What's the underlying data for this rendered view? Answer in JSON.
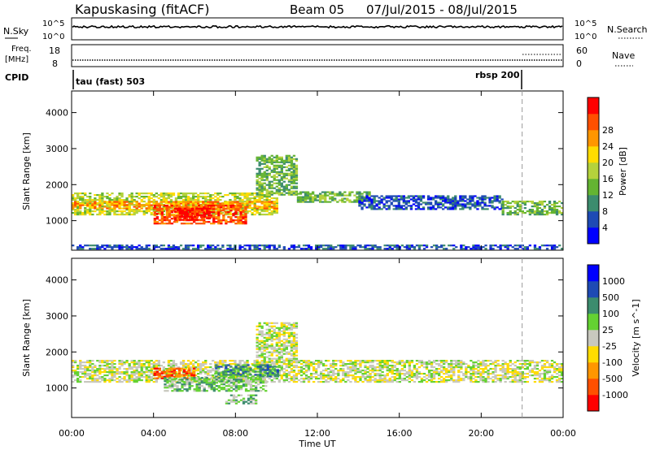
{
  "header": {
    "station": "Kapuskasing (fitACF)",
    "beam": "Beam 05",
    "dates": "07/Jul/2015 - 08/Jul/2015"
  },
  "labels": {
    "nsky": "N.Sky",
    "nsearch": "N.Search",
    "freq_line1": "Freq.",
    "freq_line2": "[MHz]",
    "nave": "Nave",
    "cpid": "CPID",
    "cpid_left": "tau (fast) 503",
    "cpid_right": "rbsp 200",
    "noise_ticks": [
      "10^5",
      "10^0"
    ],
    "freq_ticks": [
      "18",
      "8"
    ],
    "nave_ticks": [
      "60",
      "0"
    ]
  },
  "chart_data": [
    {
      "type": "heatmap",
      "name": "power",
      "ylabel": "Slant Range [km]",
      "xlabel": "",
      "ylim": [
        180,
        4600
      ],
      "yticks": [
        "1000",
        "2000",
        "3000",
        "4000"
      ],
      "colorbar_label": "Power [dB]",
      "colorbar_ticks": [
        "4",
        "8",
        "12",
        "16",
        "20",
        "24",
        "28"
      ],
      "colors": [
        "#0000ff",
        "#1e4ab4",
        "#3c8c6e",
        "#64b432",
        "#b4d23c",
        "#ffdc00",
        "#ff9600",
        "#ff5000",
        "#ff0000"
      ],
      "regions": [
        {
          "t": [
            0.0,
            10.0
          ],
          "r": [
            1150,
            1750
          ],
          "level": 4
        },
        {
          "t": [
            0.0,
            10.0
          ],
          "r": [
            1320,
            1520
          ],
          "level": 6
        },
        {
          "t": [
            4.0,
            8.5
          ],
          "r": [
            900,
            1400
          ],
          "level": 7
        },
        {
          "t": [
            5.0,
            6.8
          ],
          "r": [
            1000,
            1350
          ],
          "level": 8
        },
        {
          "t": [
            9.0,
            11.0
          ],
          "r": [
            1700,
            2800
          ],
          "level": 3
        },
        {
          "t": [
            11.0,
            14.5
          ],
          "r": [
            1500,
            1800
          ],
          "level": 3
        },
        {
          "t": [
            14.0,
            21.0
          ],
          "r": [
            1300,
            1700
          ],
          "level": 1
        },
        {
          "t": [
            21.0,
            24.0
          ],
          "r": [
            1150,
            1550
          ],
          "level": 3
        },
        {
          "t": [
            0.0,
            24.0
          ],
          "r": [
            200,
            320
          ],
          "level": 1
        }
      ]
    },
    {
      "type": "heatmap",
      "name": "velocity",
      "ylabel": "Slant Range [km]",
      "xlabel": "Time UT",
      "ylim": [
        180,
        4600
      ],
      "yticks": [
        "1000",
        "2000",
        "3000",
        "4000"
      ],
      "xticks": [
        "00:00",
        "04:00",
        "08:00",
        "12:00",
        "16:00",
        "20:00",
        "00:00"
      ],
      "xlim": [
        0,
        24
      ],
      "colorbar_label": "Velocity [m s^-1]",
      "colorbar_ticks": [
        "-1000",
        "-500",
        "-100",
        "-25",
        "25",
        "100",
        "500",
        "1000"
      ],
      "colors": [
        "#ff0000",
        "#ff5000",
        "#ff9600",
        "#ffdc00",
        "#c8c8be",
        "#64d232",
        "#3c8c6e",
        "#1e4ab4",
        "#0000ff"
      ],
      "regions": [
        {
          "t": [
            0.0,
            24.0
          ],
          "r": [
            1150,
            1750
          ],
          "level": 4
        },
        {
          "t": [
            4.0,
            6.0
          ],
          "r": [
            1250,
            1550
          ],
          "level": 1
        },
        {
          "t": [
            4.5,
            9.5
          ],
          "r": [
            900,
            1300
          ],
          "level": 5
        },
        {
          "t": [
            7.0,
            10.0
          ],
          "r": [
            1300,
            1650
          ],
          "level": 6
        },
        {
          "t": [
            9.0,
            11.0
          ],
          "r": [
            1700,
            2800
          ],
          "level": 4
        },
        {
          "t": [
            7.5,
            9.0
          ],
          "r": [
            550,
            800
          ],
          "level": 5
        }
      ]
    }
  ],
  "marker_time": 22.0,
  "cpid_switch_time": 22.0
}
